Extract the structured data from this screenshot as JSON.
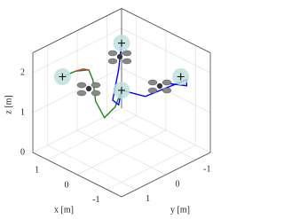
{
  "chart_data": {
    "type": "line3d",
    "xlabel": "x [m]",
    "ylabel": "y [m]",
    "zlabel": "z [m]",
    "xlim": [
      -1.5,
      1.5
    ],
    "ylim": [
      -1.5,
      1.5
    ],
    "zlim": [
      0,
      2.5
    ],
    "xticks": [
      -1,
      0,
      1
    ],
    "yticks": [
      -1,
      0,
      1
    ],
    "zticks": [
      0,
      1,
      2
    ],
    "grid": true,
    "waypoints": {
      "color": "#bfe0dc",
      "x": [
        1,
        1,
        -1,
        -1
      ],
      "y": [
        1,
        -1,
        -1,
        1
      ],
      "z": [
        1.9,
        2.0,
        1.9,
        2.3
      ]
    },
    "series": [
      {
        "color": "#1a8a1a",
        "x": [
          1.0,
          0.56,
          0.11,
          -0.03,
          -0.12,
          -0.42,
          -0.78,
          -1.0
        ],
        "y": [
          1,
          1,
          1,
          1,
          1,
          1,
          1,
          1
        ],
        "z": [
          1.9,
          2.2,
          2.4,
          2.2,
          1.7,
          1.4,
          1.8,
          2.3
        ]
      },
      {
        "color": "#e03030",
        "x": [
          0.56,
          0.3,
          0.11
        ],
        "y": [
          1,
          1,
          1
        ],
        "z": [
          2.2,
          2.35,
          2.4
        ]
      },
      {
        "color": "#0000ff",
        "x": [
          1.0,
          0.7,
          0.3,
          -0.5,
          -1.0,
          -0.8,
          -1.2,
          -1.0,
          -0.7
        ],
        "y": [
          -1.0,
          -0.6,
          0.0,
          0.6,
          1.0,
          0.0,
          -1.0,
          -1.2,
          -0.8
        ],
        "z": [
          2.0,
          1.6,
          1.2,
          1.6,
          2.3,
          1.7,
          1.9,
          1.6,
          1.7
        ]
      }
    ]
  }
}
